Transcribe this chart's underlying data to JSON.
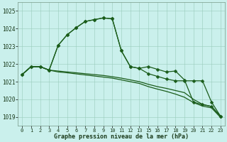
{
  "title": "Graphe pression niveau de la mer (hPa)",
  "bg_color": "#caf0ec",
  "grid_color": "#99ccbb",
  "line_color": "#1a5c1a",
  "hours": [
    0,
    1,
    2,
    3,
    4,
    5,
    6,
    7,
    8,
    9,
    10,
    11,
    12,
    13,
    15,
    16,
    17,
    18,
    19,
    20,
    21,
    22,
    23
  ],
  "hour_labels": [
    "0",
    "1",
    "2",
    "3",
    "4",
    "5",
    "6",
    "7",
    "8",
    "9",
    "10",
    "11",
    "12",
    "13",
    "15",
    "16",
    "17",
    "18",
    "19",
    "20",
    "21",
    "22",
    "23"
  ],
  "ylim": [
    1018.5,
    1025.5
  ],
  "yticks": [
    1019,
    1020,
    1021,
    1022,
    1023,
    1024,
    1025
  ],
  "line1_y": [
    1021.4,
    1021.85,
    1021.85,
    1021.65,
    1023.05,
    1023.65,
    1024.05,
    1024.4,
    1024.5,
    1024.6,
    1024.55,
    1022.75,
    1021.85,
    1021.75,
    1021.85,
    1021.7,
    1021.55,
    1021.6,
    1021.1,
    1019.85,
    1019.7,
    1019.6,
    1019.05
  ],
  "line2_y": [
    1021.4,
    1021.85,
    1021.85,
    1021.65,
    1023.05,
    1023.65,
    1024.05,
    1024.4,
    1024.5,
    1024.6,
    1024.55,
    1022.75,
    1021.85,
    1021.75,
    1021.45,
    1021.3,
    1021.15,
    1021.05,
    1021.05,
    1021.05,
    1021.05,
    1019.85,
    1019.05
  ],
  "line3_y": [
    1021.4,
    1021.85,
    1021.85,
    1021.65,
    1021.6,
    1021.55,
    1021.5,
    1021.45,
    1021.4,
    1021.35,
    1021.28,
    1021.2,
    1021.1,
    1021.0,
    1020.85,
    1020.72,
    1020.62,
    1020.5,
    1020.38,
    1020.0,
    1019.72,
    1019.6,
    1019.05
  ],
  "line4_y": [
    1021.4,
    1021.85,
    1021.85,
    1021.65,
    1021.55,
    1021.5,
    1021.44,
    1021.38,
    1021.32,
    1021.26,
    1021.2,
    1021.1,
    1021.0,
    1020.9,
    1020.72,
    1020.58,
    1020.45,
    1020.3,
    1020.12,
    1019.82,
    1019.62,
    1019.52,
    1018.98
  ],
  "marker": "D",
  "marker_size": 2.5,
  "linewidth": 0.9,
  "xlabel_fontsize": 6.0,
  "ytick_fontsize": 5.5,
  "xtick_fontsize": 5.0
}
